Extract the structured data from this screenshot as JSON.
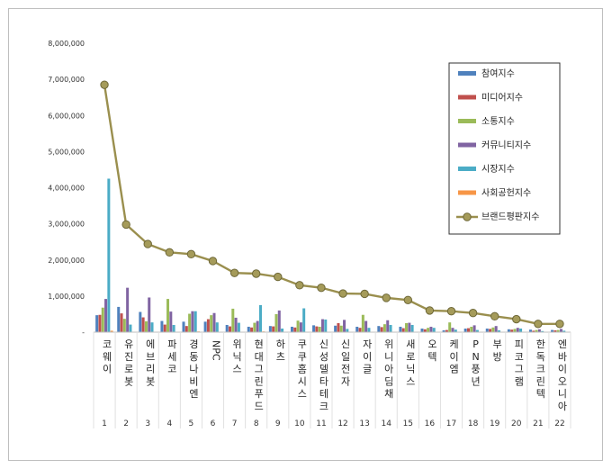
{
  "chart_data": {
    "type": "bar",
    "ylim": [
      0,
      8000000
    ],
    "yticks": [
      "-",
      "1,000,000",
      "2,000,000",
      "3,000,000",
      "4,000,000",
      "5,000,000",
      "6,000,000",
      "7,000,000",
      "8,000,000"
    ],
    "grid": false,
    "legend_position": "top-right",
    "categories": [
      "코웨이",
      "유진로봇",
      "에브리봇",
      "파세코",
      "경동나비엔",
      "NPC",
      "위닉스",
      "현대그린푸드",
      "하츠",
      "쿠쿠홈시스",
      "신성델타테크",
      "신일전자",
      "자이글",
      "위니아딤채",
      "새로닉스",
      "오텍",
      "케이엠",
      "PN풍년",
      "부방",
      "피코그램",
      "한독크린텍",
      "엔바이오니아"
    ],
    "ranks": [
      "1",
      "2",
      "3",
      "4",
      "5",
      "6",
      "7",
      "8",
      "9",
      "10",
      "11",
      "12",
      "13",
      "14",
      "15",
      "16",
      "17",
      "18",
      "19",
      "20",
      "21",
      "22"
    ],
    "series": [
      {
        "name": "참여지수",
        "color": "#4f81bd",
        "values": [
          470000,
          700000,
          560000,
          310000,
          290000,
          290000,
          200000,
          150000,
          170000,
          150000,
          190000,
          180000,
          150000,
          170000,
          150000,
          100000,
          50000,
          100000,
          100000,
          80000,
          70000,
          60000
        ]
      },
      {
        "name": "미디어지수",
        "color": "#c0504d",
        "values": [
          480000,
          520000,
          410000,
          210000,
          170000,
          360000,
          160000,
          130000,
          160000,
          130000,
          160000,
          250000,
          120000,
          140000,
          110000,
          80000,
          60000,
          110000,
          90000,
          70000,
          40000,
          50000
        ]
      },
      {
        "name": "소통지수",
        "color": "#9bbb59",
        "values": [
          680000,
          370000,
          300000,
          920000,
          510000,
          470000,
          650000,
          260000,
          500000,
          320000,
          150000,
          180000,
          480000,
          220000,
          250000,
          120000,
          270000,
          150000,
          130000,
          90000,
          60000,
          60000
        ]
      },
      {
        "name": "커뮤니티지수",
        "color": "#8064a2",
        "values": [
          920000,
          1230000,
          960000,
          570000,
          580000,
          530000,
          400000,
          310000,
          600000,
          270000,
          360000,
          340000,
          310000,
          330000,
          260000,
          150000,
          120000,
          190000,
          170000,
          120000,
          80000,
          90000
        ]
      },
      {
        "name": "시장지수",
        "color": "#4bacc6",
        "values": [
          4250000,
          210000,
          270000,
          200000,
          580000,
          270000,
          260000,
          750000,
          100000,
          660000,
          350000,
          90000,
          120000,
          200000,
          200000,
          120000,
          70000,
          60000,
          50000,
          100000,
          30000,
          40000
        ]
      },
      {
        "name": "사회공헌지수",
        "color": "#f79646",
        "values": [
          40000,
          0,
          0,
          0,
          20000,
          0,
          0,
          20000,
          0,
          0,
          0,
          0,
          0,
          0,
          0,
          0,
          0,
          0,
          0,
          0,
          0,
          0
        ]
      }
    ],
    "line_series": {
      "name": "브랜드평판지수",
      "color": "#9a8f4e",
      "values": [
        6850000,
        2980000,
        2440000,
        2210000,
        2160000,
        1970000,
        1640000,
        1620000,
        1530000,
        1300000,
        1230000,
        1070000,
        1060000,
        950000,
        890000,
        600000,
        580000,
        530000,
        440000,
        360000,
        230000,
        230000
      ]
    }
  }
}
